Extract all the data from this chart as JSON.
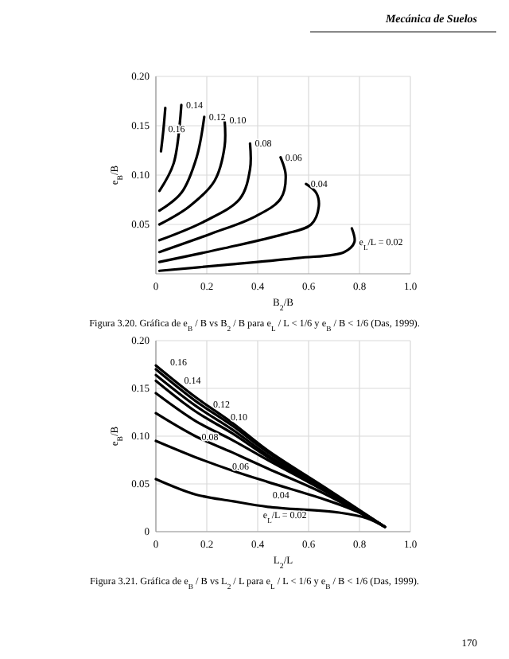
{
  "chart_data": [
    {
      "type": "line",
      "title": "Mecánica de Suelos",
      "xlabel": "B$_{2}$/B",
      "ylabel": "e$_{B}$/B",
      "grid": true,
      "xlim": [
        0,
        1
      ],
      "ylim": [
        0,
        0.2
      ],
      "xticks": [
        0,
        {
          "value": 0.2,
          "label": "0.2"
        },
        {
          "value": 0.4,
          "label": "0.4"
        },
        {
          "value": 0.6,
          "label": "0.6"
        },
        {
          "value": 0.8,
          "label": "0.8"
        },
        {
          "value": 1,
          "label": "1.0"
        }
      ],
      "yticks": [
        {
          "value": 0.05,
          "label": "0.05"
        },
        {
          "value": 0.1,
          "label": "0.10"
        },
        {
          "value": 0.15,
          "label": "0.15"
        },
        {
          "value": 0.2,
          "label": "0.20"
        }
      ],
      "series": [
        {
          "color": "#000000",
          "x": [
            0.014,
            0.27,
            0.56,
            0.74,
            0.78,
            0.77
          ],
          "values": [
            0.003,
            0.009,
            0.016,
            0.022,
            0.032,
            0.046
          ]
        },
        {
          "color": "#000000",
          "x": [
            0.014,
            0.27,
            0.5,
            0.61,
            0.64,
            0.63,
            0.59
          ],
          "values": [
            0.012,
            0.026,
            0.04,
            0.05,
            0.068,
            0.082,
            0.091
          ]
        },
        {
          "color": "#000000",
          "x": [
            0.014,
            0.21,
            0.39,
            0.49,
            0.51,
            0.49
          ],
          "values": [
            0.022,
            0.04,
            0.058,
            0.076,
            0.1,
            0.118
          ]
        },
        {
          "color": "#000000",
          "x": [
            0.014,
            0.19,
            0.33,
            0.37,
            0.37
          ],
          "values": [
            0.034,
            0.053,
            0.076,
            0.106,
            0.132
          ]
        },
        {
          "color": "#000000",
          "x": [
            0.014,
            0.13,
            0.23,
            0.27,
            0.27
          ],
          "values": [
            0.05,
            0.068,
            0.094,
            0.129,
            0.156
          ]
        },
        {
          "color": "#000000",
          "x": [
            0.014,
            0.1,
            0.16,
            0.19
          ],
          "values": [
            0.064,
            0.082,
            0.118,
            0.159
          ]
        },
        {
          "color": "#000000",
          "x": [
            0.014,
            0.07,
            0.1
          ],
          "values": [
            0.084,
            0.112,
            0.171
          ]
        },
        {
          "color": "#000000",
          "x": [
            0.02,
            0.03,
            0.037
          ],
          "values": [
            0.124,
            0.147,
            0.168
          ]
        }
      ],
      "annotations": [
        "Figura 3.20. Gráfica de e$_{B}$ / B vs B$_{2}$ / B para e$_{L}$ / L < 1/6 y e$_{B}$ / B < 1/6 (Das, 1999).",
        {
          "text": "e$_{L}$/L = 0.02",
          "x": 0.78,
          "y": 0.032
        },
        {
          "text": "0.04",
          "x": 0.59,
          "y": 0.091
        },
        {
          "text": "0.06",
          "x": 0.49,
          "y": 0.118
        },
        {
          "text": "0.08",
          "x": 0.37,
          "y": 0.132
        },
        {
          "text": "0.10",
          "x": 0.27,
          "y": 0.156
        },
        {
          "text": "0.12",
          "x": 0.19,
          "y": 0.159
        },
        {
          "text": "0.14",
          "x": 0.1,
          "y": 0.171
        },
        {
          "text": "0.16",
          "x": 0.03,
          "y": 0.147
        }
      ]
    },
    {
      "type": "line",
      "xlabel": "L$_{2}$/L",
      "ylabel": "e$_{B}$/B",
      "grid": true,
      "xlim": [
        0,
        1
      ],
      "ylim": [
        0,
        0.2
      ],
      "xticks": [
        0,
        {
          "value": 0.2,
          "label": "0.2"
        },
        {
          "value": 0.4,
          "label": "0.4"
        },
        {
          "value": 0.6,
          "label": "0.6"
        },
        {
          "value": 0.8,
          "label": "0.8"
        },
        {
          "value": 1,
          "label": "1.0"
        }
      ],
      "yticks": [
        0,
        {
          "value": 0.05,
          "label": "0.05"
        },
        {
          "value": 0.1,
          "label": "0.10"
        },
        {
          "value": 0.15,
          "label": "0.15"
        },
        {
          "value": 0.2,
          "label": "0.20"
        }
      ],
      "series": [
        {
          "color": "#000000",
          "x": [
            0,
            0.155,
            0.3,
            0.44,
            0.72,
            0.83,
            0.9
          ],
          "values": [
            0.055,
            0.039,
            0.032,
            0.026,
            0.02,
            0.014,
            0.005
          ]
        },
        {
          "color": "#000000",
          "x": [
            0,
            0.155,
            0.3,
            0.44,
            0.66,
            0.8,
            0.9
          ],
          "values": [
            0.095,
            0.078,
            0.064,
            0.052,
            0.034,
            0.02,
            0.005
          ]
        },
        {
          "color": "#000000",
          "x": [
            0,
            0.155,
            0.3,
            0.44,
            0.66,
            0.9
          ],
          "values": [
            0.124,
            0.1,
            0.083,
            0.066,
            0.04,
            0.005
          ]
        },
        {
          "color": "#000000",
          "x": [
            0,
            0.155,
            0.3,
            0.44,
            0.66,
            0.9
          ],
          "values": [
            0.145,
            0.116,
            0.096,
            0.075,
            0.043,
            0.005
          ]
        },
        {
          "color": "#000000",
          "x": [
            0,
            0.155,
            0.3,
            0.44,
            0.66,
            0.9
          ],
          "values": [
            0.158,
            0.126,
            0.103,
            0.078,
            0.044,
            0.005
          ]
        },
        {
          "color": "#000000",
          "x": [
            0,
            0.155,
            0.3,
            0.44,
            0.66,
            0.9
          ],
          "values": [
            0.164,
            0.132,
            0.107,
            0.08,
            0.045,
            0.005
          ]
        },
        {
          "color": "#000000",
          "x": [
            0,
            0.155,
            0.3,
            0.44,
            0.66,
            0.9
          ],
          "values": [
            0.17,
            0.137,
            0.111,
            0.083,
            0.046,
            0.005
          ]
        },
        {
          "color": "#000000",
          "x": [
            0,
            0.155,
            0.3,
            0.44,
            0.66,
            0.9
          ],
          "values": [
            0.174,
            0.141,
            0.114,
            0.085,
            0.047,
            0.005
          ]
        }
      ],
      "annotations": [
        "Figura 3.21. Gráfica de e$_{B}$ / B vs L$_{2}$ / L para e$_{L}$ / L < 1/6 y e$_{B}$ / B < 1/6 (Das, 1999).",
        "170",
        {
          "text": "e$_{L}$/L = 0.02",
          "x": 0.44,
          "y": 0.026
        },
        {
          "text": "0.04",
          "x": 0.44,
          "y": 0.052
        },
        {
          "text": "0.06",
          "x": 0.3,
          "y": 0.083
        },
        {
          "text": "0.08",
          "x": 0.155,
          "y": 0.116
        },
        {
          "text": "0.10",
          "x": 0.3,
          "y": 0.103
        },
        {
          "text": "0.12",
          "x": 0.3,
          "y": 0.107
        },
        {
          "text": "0.14",
          "x": 0.155,
          "y": 0.137
        },
        {
          "text": "0.16",
          "x": 0,
          "y": 0.174
        }
      ]
    }
  ]
}
